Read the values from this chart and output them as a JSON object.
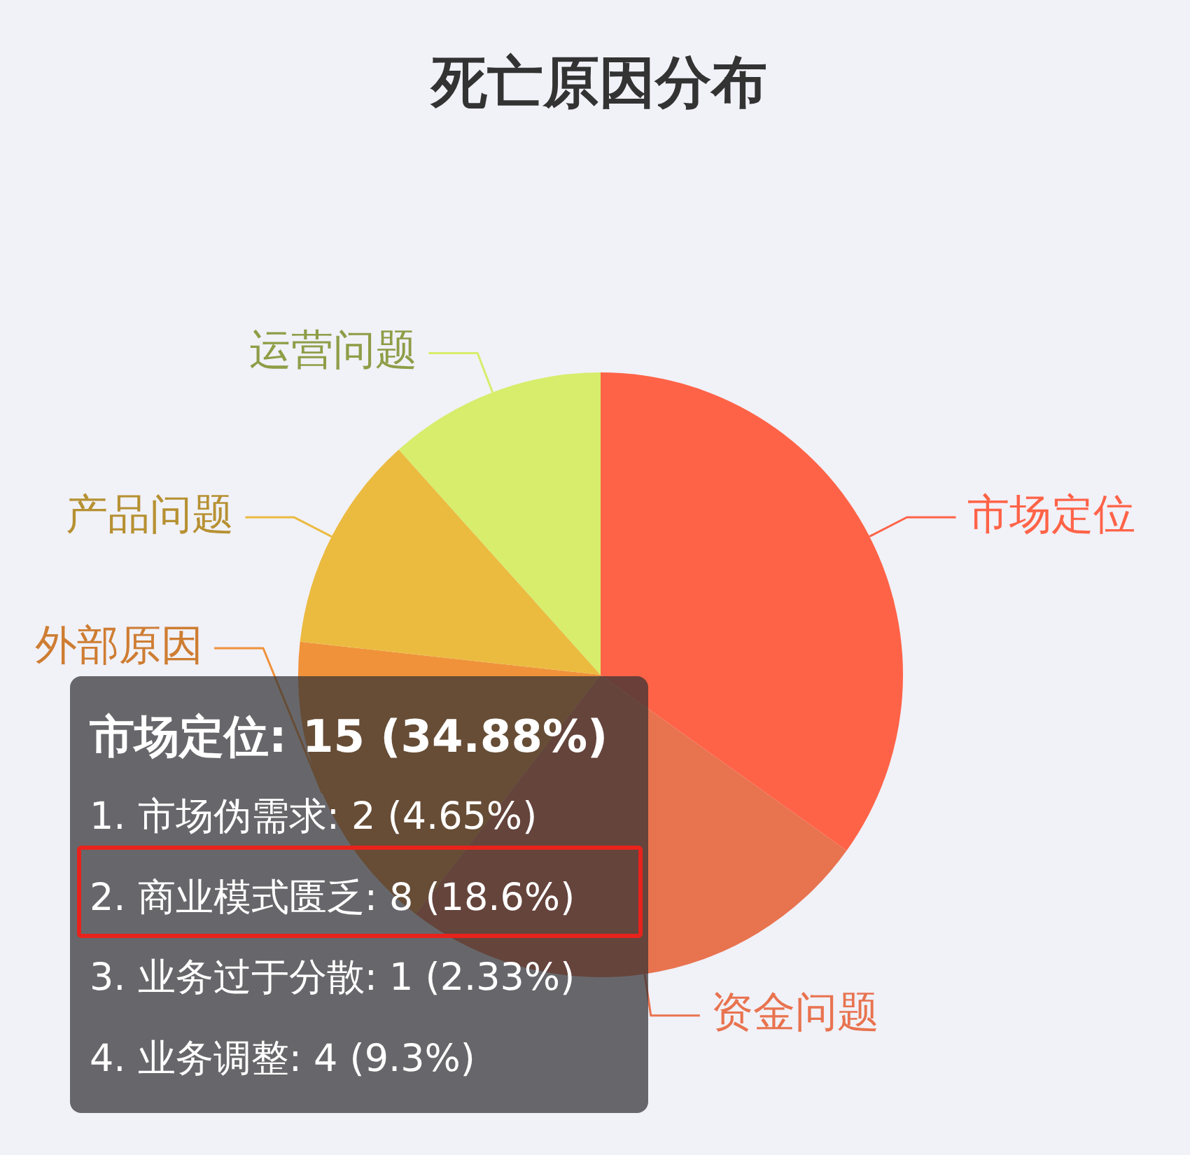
{
  "chart_data": {
    "type": "pie",
    "title": "死亡原因分布",
    "categories": [
      "市场定位",
      "资金问题",
      "外部原因",
      "产品问题",
      "运营问题"
    ],
    "values": [
      34.88,
      25.58,
      16.28,
      11.63,
      11.63
    ],
    "colors": [
      "#ff6347",
      "#e8734f",
      "#f0923a",
      "#ebbb40",
      "#d7ed6b"
    ],
    "annotations": [
      "市场定位: 15 (34.88%)",
      "1. 市场伪需求: 2 (4.65%)",
      "2. 商业模式匮乏: 8 (18.6%)",
      "3. 业务过于分散: 1 (2.33%)",
      "4. 业务调整: 4 (9.3%)"
    ]
  }
}
